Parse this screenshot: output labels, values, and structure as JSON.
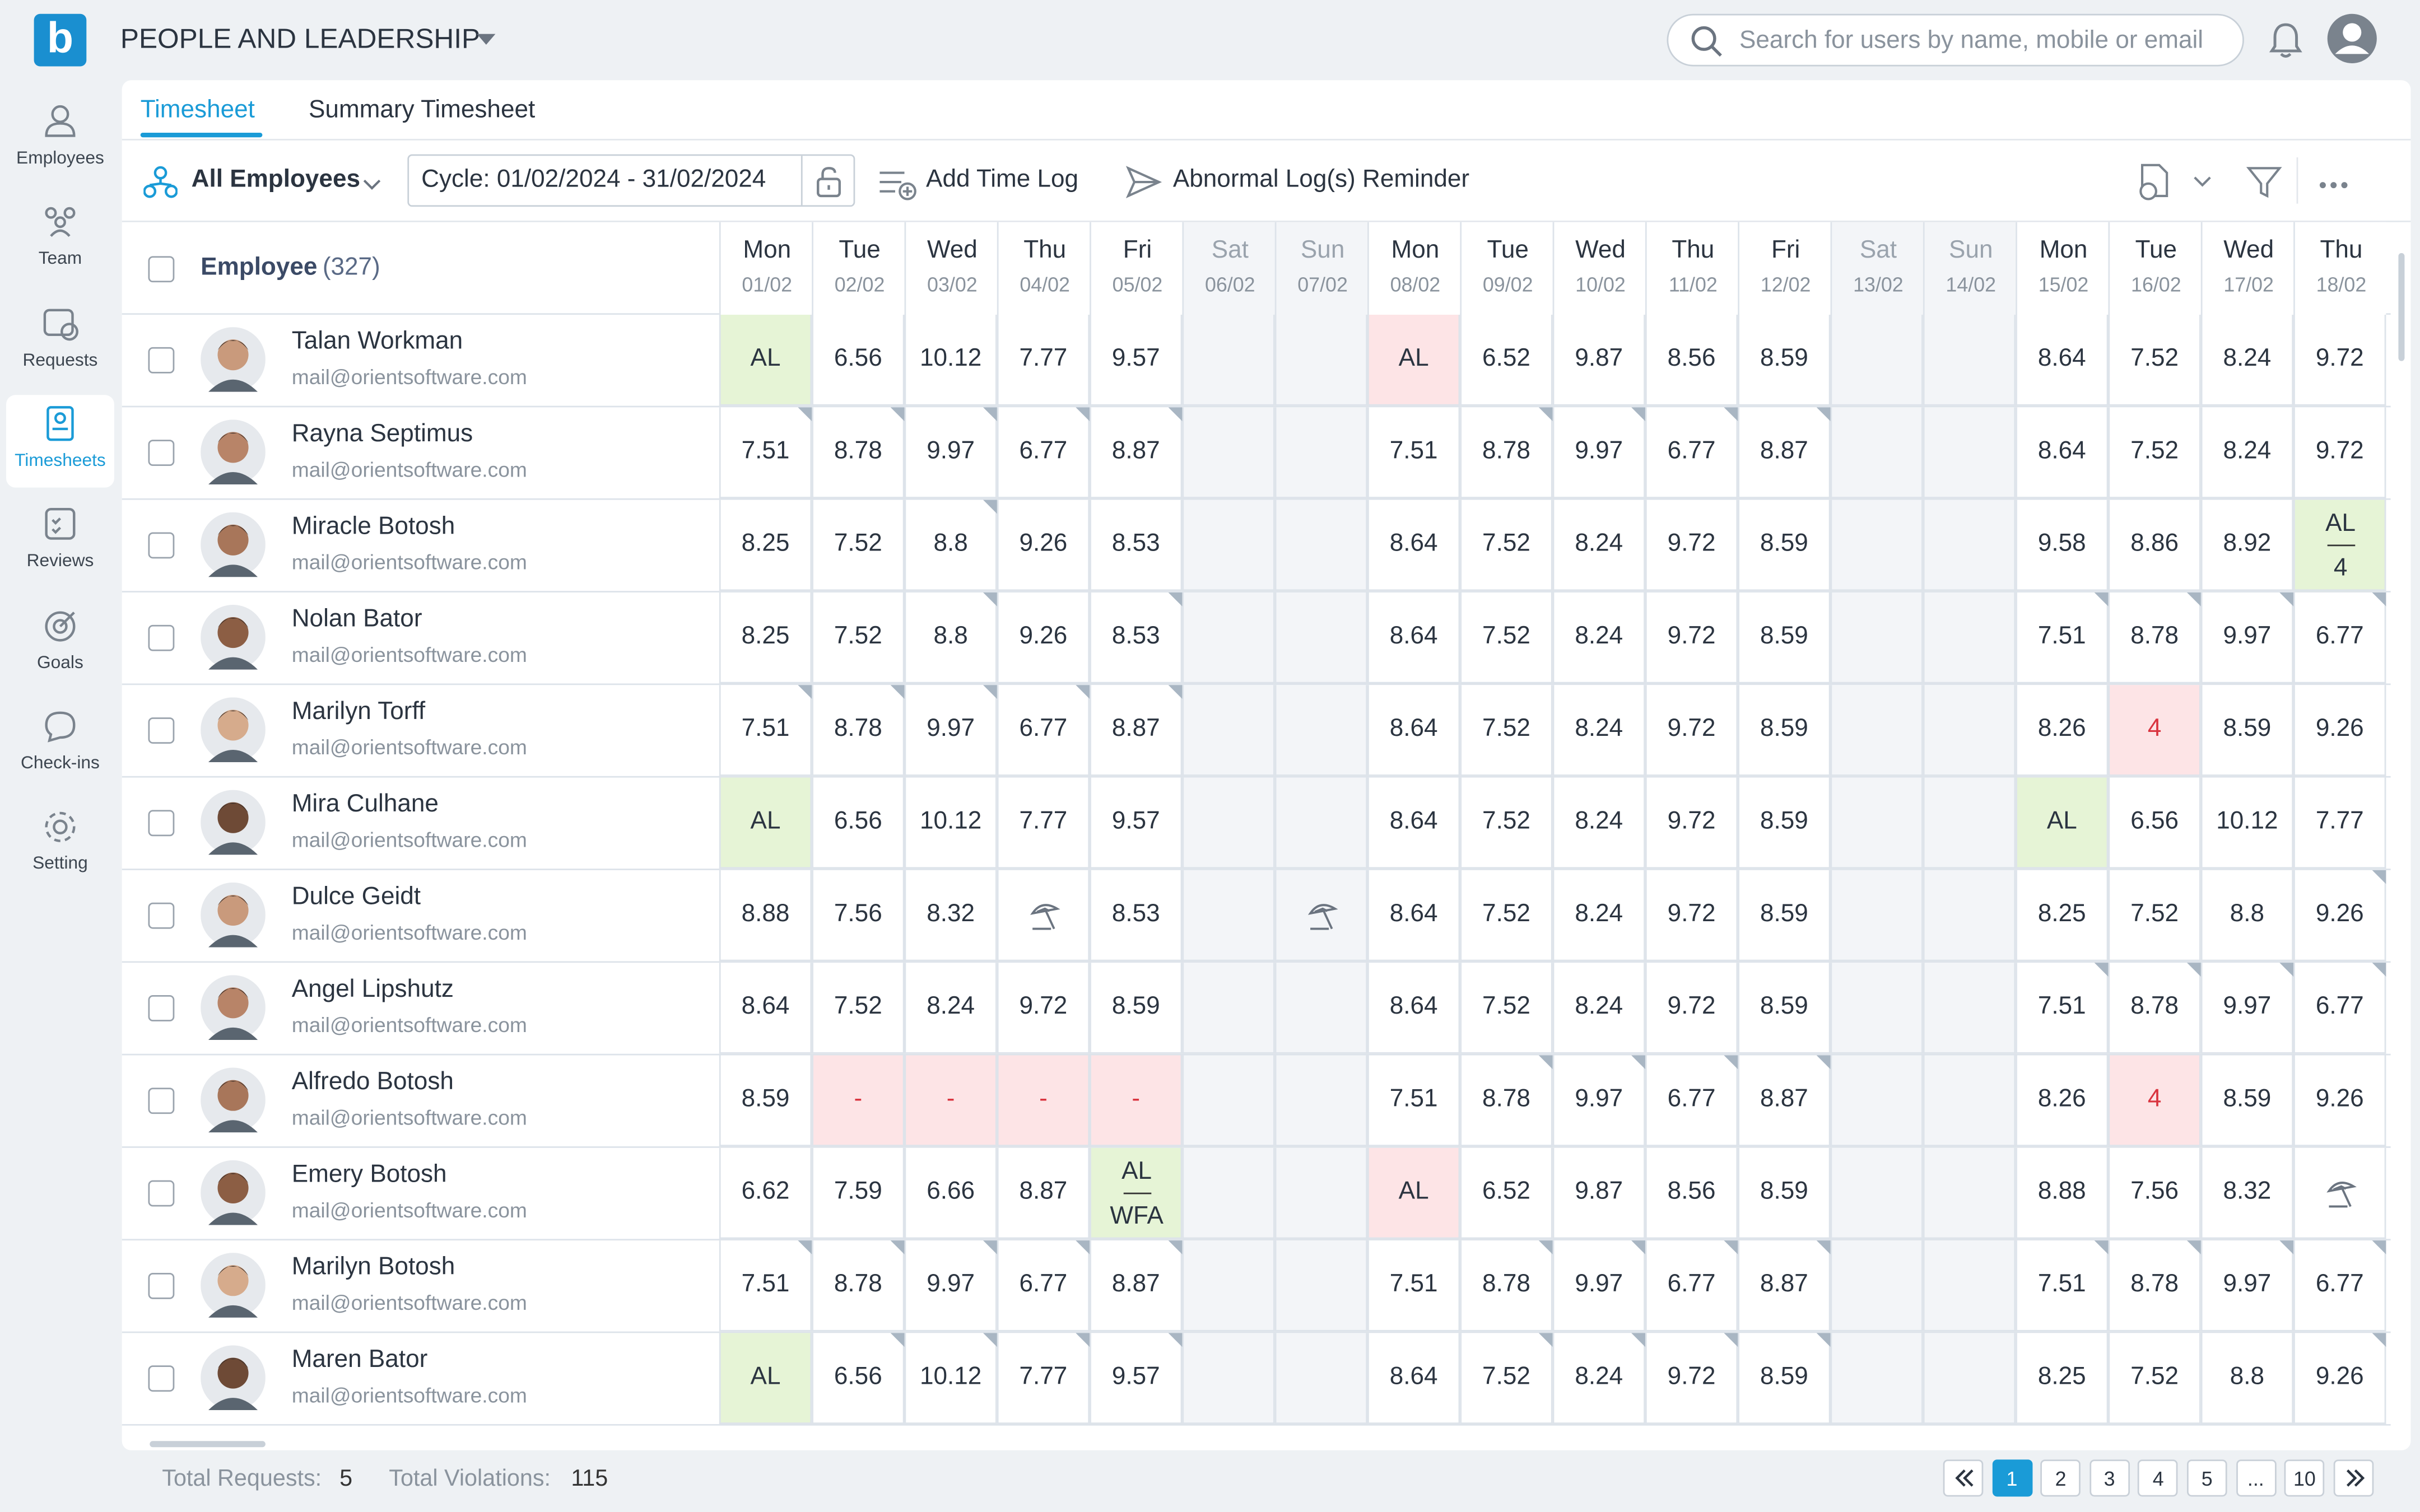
{
  "app": {
    "title": "PEOPLE AND LEADERSHIP",
    "search_placeholder": "Search for users by name, mobile or email"
  },
  "sidebar": {
    "items": [
      "Employees",
      "Team",
      "Requests",
      "Timesheets",
      "Reviews",
      "Goals",
      "Check-ins",
      "Setting"
    ],
    "active": 3
  },
  "tabs": {
    "items": [
      "Timesheet",
      "Summary Timesheet"
    ],
    "active": 0
  },
  "toolbar": {
    "group": "All Employees",
    "cycle": "Cycle: 01/02/2024 - 31/02/2024",
    "add": "Add Time Log",
    "reminder": "Abnormal Log(s) Reminder"
  },
  "table": {
    "employee_header": "Employee",
    "employee_count": "(327)",
    "days": [
      {
        "dow": "Mon",
        "date": "01/02",
        "weekend": false
      },
      {
        "dow": "Tue",
        "date": "02/02",
        "weekend": false
      },
      {
        "dow": "Wed",
        "date": "03/02",
        "weekend": false
      },
      {
        "dow": "Thu",
        "date": "04/02",
        "weekend": false
      },
      {
        "dow": "Fri",
        "date": "05/02",
        "weekend": false
      },
      {
        "dow": "Sat",
        "date": "06/02",
        "weekend": true
      },
      {
        "dow": "Sun",
        "date": "07/02",
        "weekend": true
      },
      {
        "dow": "Mon",
        "date": "08/02",
        "weekend": false
      },
      {
        "dow": "Tue",
        "date": "09/02",
        "weekend": false
      },
      {
        "dow": "Wed",
        "date": "10/02",
        "weekend": false
      },
      {
        "dow": "Thu",
        "date": "11/02",
        "weekend": false
      },
      {
        "dow": "Fri",
        "date": "12/02",
        "weekend": false
      },
      {
        "dow": "Sat",
        "date": "13/02",
        "weekend": true
      },
      {
        "dow": "Sun",
        "date": "14/02",
        "weekend": true
      },
      {
        "dow": "Mon",
        "date": "15/02",
        "weekend": false
      },
      {
        "dow": "Tue",
        "date": "16/02",
        "weekend": false
      },
      {
        "dow": "Wed",
        "date": "17/02",
        "weekend": false
      },
      {
        "dow": "Thu",
        "date": "18/02",
        "weekend": false
      }
    ],
    "rows": [
      {
        "name": "Talan Workman",
        "email": "mail@orientsoftware.com",
        "cells": [
          {
            "text": "AL",
            "bg": "green"
          },
          "6.56",
          "10.12",
          "7.77",
          "9.57",
          "",
          "",
          {
            "text": "AL",
            "bg": "red"
          },
          "6.52",
          "9.87",
          "8.56",
          "8.59",
          "",
          "",
          "8.64",
          "7.52",
          "8.24",
          "9.72"
        ],
        "flags": []
      },
      {
        "name": "Rayna Septimus",
        "email": "mail@orientsoftware.com",
        "cells": [
          "7.51",
          "8.78",
          "9.97",
          "6.77",
          "8.87",
          "",
          "",
          "7.51",
          "8.78",
          "9.97",
          "6.77",
          "8.87",
          "",
          "",
          "8.64",
          "7.52",
          "8.24",
          "9.72"
        ],
        "flags": [
          0,
          1,
          2,
          3,
          4,
          8,
          9,
          10,
          11
        ]
      },
      {
        "name": "Miracle Botosh",
        "email": "mail@orientsoftware.com",
        "cells": [
          "8.25",
          "7.52",
          "8.8",
          "9.26",
          "8.53",
          "",
          "",
          "8.64",
          "7.52",
          "8.24",
          "9.72",
          "8.59",
          "",
          "",
          "9.58",
          "8.86",
          "8.92",
          {
            "top": "AL",
            "bottom": "4",
            "bg": "green"
          }
        ],
        "flags": [
          2
        ]
      },
      {
        "name": "Nolan Bator",
        "email": "mail@orientsoftware.com",
        "cells": [
          "8.25",
          "7.52",
          "8.8",
          "9.26",
          "8.53",
          "",
          "",
          "8.64",
          "7.52",
          "8.24",
          "9.72",
          "8.59",
          "",
          "",
          "7.51",
          "8.78",
          "9.97",
          "6.77"
        ],
        "flags": [
          2,
          4,
          14,
          15,
          16,
          17
        ]
      },
      {
        "name": "Marilyn Torff",
        "email": "mail@orientsoftware.com",
        "cells": [
          "7.51",
          "8.78",
          "9.97",
          "6.77",
          "8.87",
          "",
          "",
          "8.64",
          "7.52",
          "8.24",
          "9.72",
          "8.59",
          "",
          "",
          "8.26",
          {
            "text": "4",
            "bg": "red",
            "color": "red"
          },
          "8.59",
          "9.26"
        ],
        "flags": [
          0,
          1,
          2,
          3,
          4
        ]
      },
      {
        "name": "Mira Culhane",
        "email": "mail@orientsoftware.com",
        "cells": [
          {
            "text": "AL",
            "bg": "green"
          },
          "6.56",
          "10.12",
          "7.77",
          "9.57",
          "",
          "",
          "8.64",
          "7.52",
          "8.24",
          "9.72",
          "8.59",
          "",
          "",
          {
            "text": "AL",
            "bg": "green"
          },
          "6.56",
          "10.12",
          "7.77"
        ],
        "flags": []
      },
      {
        "name": "Dulce Geidt",
        "email": "mail@orientsoftware.com",
        "cells": [
          "8.88",
          "7.56",
          "8.32",
          {
            "icon": "umbrella"
          },
          "8.53",
          "",
          {
            "icon": "umbrella"
          },
          "8.64",
          "7.52",
          "8.24",
          "9.72",
          "8.59",
          "",
          "",
          "8.25",
          "7.52",
          "8.8",
          "9.26"
        ],
        "flags": [
          17
        ]
      },
      {
        "name": "Angel Lipshutz",
        "email": "mail@orientsoftware.com",
        "cells": [
          "8.64",
          "7.52",
          "8.24",
          "9.72",
          "8.59",
          "",
          "",
          "8.64",
          "7.52",
          "8.24",
          "9.72",
          "8.59",
          "",
          "",
          "7.51",
          "8.78",
          "9.97",
          "6.77"
        ],
        "flags": [
          14,
          15,
          16,
          17
        ]
      },
      {
        "name": "Alfredo Botosh",
        "email": "mail@orientsoftware.com",
        "cells": [
          "8.59",
          {
            "text": "-",
            "bg": "red",
            "color": "red"
          },
          {
            "text": "-",
            "bg": "red",
            "color": "red"
          },
          {
            "text": "-",
            "bg": "red",
            "color": "red"
          },
          {
            "text": "-",
            "bg": "red",
            "color": "red"
          },
          "",
          "",
          "7.51",
          "8.78",
          "9.97",
          "6.77",
          "8.87",
          "",
          "",
          "8.26",
          {
            "text": "4",
            "bg": "red",
            "color": "red"
          },
          "8.59",
          "9.26"
        ],
        "flags": [
          8,
          9,
          10,
          11
        ]
      },
      {
        "name": "Emery Botosh",
        "email": "mail@orientsoftware.com",
        "cells": [
          "6.62",
          "7.59",
          "6.66",
          "8.87",
          {
            "top": "AL",
            "bottom": "WFA",
            "bg": "green"
          },
          "",
          "",
          {
            "text": "AL",
            "bg": "red"
          },
          "6.52",
          "9.87",
          "8.56",
          "8.59",
          "",
          "",
          "8.88",
          "7.56",
          "8.32",
          {
            "icon": "umbrella"
          }
        ],
        "flags": []
      },
      {
        "name": "Marilyn Botosh",
        "email": "mail@orientsoftware.com",
        "cells": [
          "7.51",
          "8.78",
          "9.97",
          "6.77",
          "8.87",
          "",
          "",
          "7.51",
          "8.78",
          "9.97",
          "6.77",
          "8.87",
          "",
          "",
          "7.51",
          "8.78",
          "9.97",
          "6.77"
        ],
        "flags": [
          0,
          1,
          2,
          3,
          4,
          8,
          9,
          10,
          11,
          14,
          15,
          16,
          17
        ]
      },
      {
        "name": "Maren Bator",
        "email": "mail@orientsoftware.com",
        "cells": [
          {
            "text": "AL",
            "bg": "green"
          },
          "6.56",
          "10.12",
          "7.77",
          "9.57",
          "",
          "",
          "8.64",
          "7.52",
          "8.24",
          "9.72",
          "8.59",
          "",
          "",
          "8.25",
          "7.52",
          "8.8",
          "9.26"
        ],
        "flags": [
          1,
          2,
          3,
          4,
          8,
          9,
          10,
          11,
          17
        ]
      }
    ]
  },
  "footer": {
    "requests_label": "Total Requests:",
    "requests": "5",
    "violations_label": "Total Violations:",
    "violations": "115"
  },
  "pagination": {
    "pages": [
      "1",
      "2",
      "3",
      "4",
      "5",
      "...",
      "10"
    ],
    "current": 0
  }
}
